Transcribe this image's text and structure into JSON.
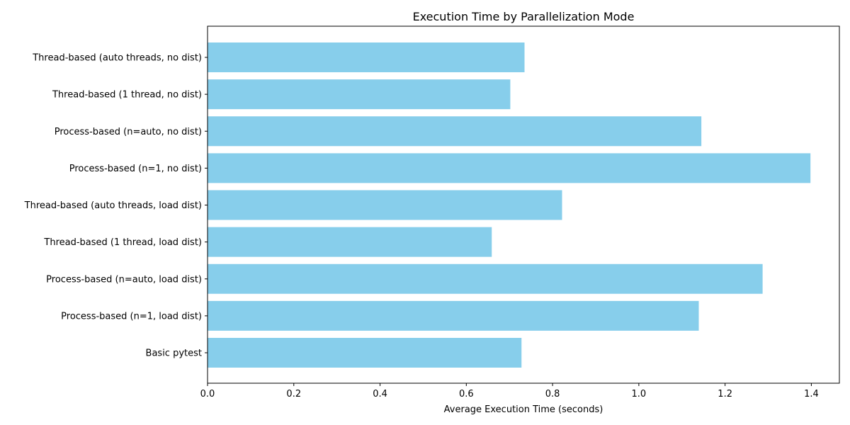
{
  "chart_data": {
    "type": "bar",
    "orientation": "horizontal",
    "title": "Execution Time by Parallelization Mode",
    "xlabel": "Average Execution Time (seconds)",
    "ylabel": "",
    "xlim": [
      0,
      1.465
    ],
    "xticks": [
      "0.0",
      "0.2",
      "0.4",
      "0.6",
      "0.8",
      "1.0",
      "1.2",
      "1.4"
    ],
    "bar_color": "#87ceeb",
    "categories": [
      "Thread-based (auto threads, no dist)",
      "Thread-based (1 thread, no dist)",
      "Process-based (n=auto, no dist)",
      "Process-based (n=1, no dist)",
      "Thread-based (auto threads, load dist)",
      "Thread-based (1 thread, load dist)",
      "Process-based (n=auto, load dist)",
      "Process-based (n=1, load dist)",
      "Basic pytest"
    ],
    "values": [
      0.735,
      0.702,
      1.145,
      1.398,
      0.822,
      0.659,
      1.287,
      1.139,
      0.728
    ],
    "grid": false
  }
}
